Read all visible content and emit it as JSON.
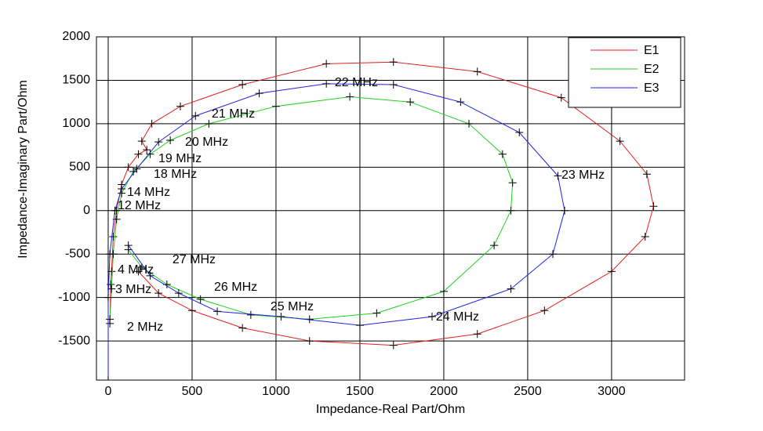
{
  "chart_data": {
    "type": "line",
    "xlabel": "Impedance-Real Part/Ohm",
    "ylabel": "Impedance-Imaginary Part/Ohm",
    "xlim": [
      -70,
      3435
    ],
    "ylim": [
      -1950,
      2000
    ],
    "xticks": [
      0,
      500,
      1000,
      1500,
      2000,
      2500,
      3000
    ],
    "yticks": [
      -1500,
      -1000,
      -500,
      0,
      500,
      1000,
      1500,
      2000
    ],
    "grid": true,
    "legend": "upper right",
    "series": [
      {
        "name": "E1",
        "color": "#e02020",
        "x": [
          10,
          15,
          20,
          30,
          50,
          80,
          120,
          180,
          230,
          200,
          260,
          430,
          800,
          1300,
          1700,
          2200,
          2700,
          3050,
          3210,
          3250,
          3200,
          3000,
          2600,
          2200,
          1700,
          1200,
          800,
          500,
          300,
          180
        ],
        "y": [
          -1300,
          -850,
          -700,
          -300,
          0,
          300,
          500,
          650,
          700,
          800,
          1000,
          1200,
          1450,
          1690,
          1710,
          1600,
          1300,
          800,
          420,
          50,
          -300,
          -700,
          -1150,
          -1420,
          -1550,
          -1500,
          -1350,
          -1150,
          -950,
          -700
        ]
      },
      {
        "name": "E2",
        "color": "#20d020",
        "x": [
          10,
          20,
          30,
          50,
          80,
          150,
          250,
          370,
          600,
          1000,
          1440,
          1800,
          2150,
          2350,
          2410,
          2400,
          2300,
          2000,
          1600,
          1200,
          850,
          550,
          350,
          200,
          120
        ],
        "y": [
          -1250,
          -900,
          -500,
          -100,
          200,
          450,
          650,
          810,
          1000,
          1200,
          1310,
          1250,
          1000,
          650,
          320,
          0,
          -400,
          -930,
          -1180,
          -1250,
          -1200,
          -1020,
          -850,
          -650,
          -450
        ]
      },
      {
        "name": "E3",
        "color": "#2020e0",
        "x": [
          0,
          0,
          10,
          40,
          80,
          170,
          300,
          520,
          900,
          1300,
          1700,
          2100,
          2450,
          2680,
          2720,
          2650,
          2400,
          1930,
          1500,
          1030,
          650,
          420,
          250,
          120
        ],
        "y": [
          -1950,
          -1000,
          -500,
          0,
          250,
          480,
          790,
          1090,
          1350,
          1460,
          1450,
          1250,
          900,
          400,
          0,
          -500,
          -900,
          -1220,
          -1320,
          -1220,
          -1160,
          -950,
          -750,
          -400
        ]
      }
    ],
    "annotations": [
      {
        "text": "22 MHz",
        "x": 1350,
        "y": 1468
      },
      {
        "text": "21 MHz",
        "x": 617,
        "y": 1108
      },
      {
        "text": "20 MHz",
        "x": 458,
        "y": 784
      },
      {
        "text": "19 MHz",
        "x": 299,
        "y": 595
      },
      {
        "text": "18 MHz",
        "x": 271,
        "y": 414
      },
      {
        "text": "14 MHz",
        "x": 112,
        "y": 207
      },
      {
        "text": "12 MHz",
        "x": 56,
        "y": 54
      },
      {
        "text": "4 MHz",
        "x": 56,
        "y": -685
      },
      {
        "text": "3 MHz",
        "x": 42,
        "y": -910
      },
      {
        "text": "2 MHz",
        "x": 112,
        "y": -1342
      },
      {
        "text": "27 MHz",
        "x": 383,
        "y": -568
      },
      {
        "text": "26 MHz",
        "x": 631,
        "y": -883
      },
      {
        "text": "25 MHz",
        "x": 967,
        "y": -1108
      },
      {
        "text": "24 MHz",
        "x": 1953,
        "y": -1225
      },
      {
        "text": "23 MHz",
        "x": 2701,
        "y": 405
      }
    ]
  }
}
